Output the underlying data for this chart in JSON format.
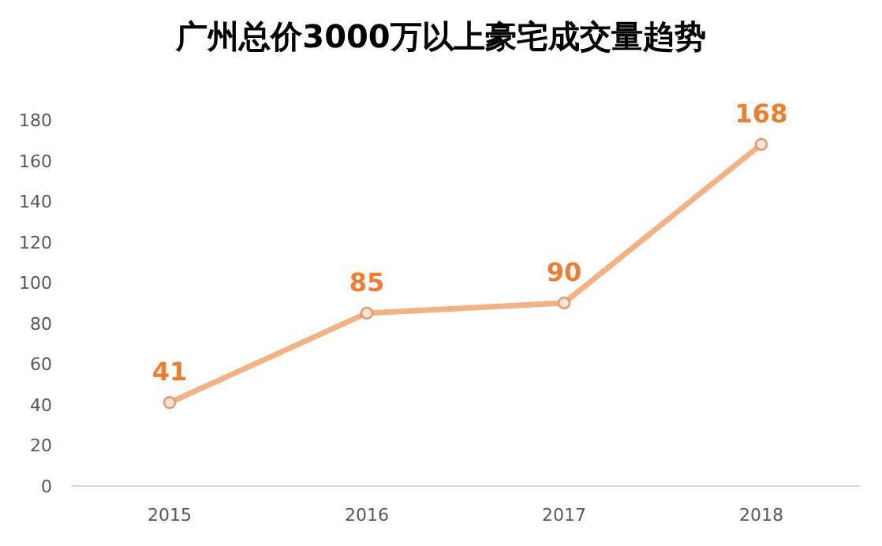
{
  "chart_data": {
    "type": "line",
    "title": "广州总价3000万以上豪宅成交量趋势",
    "categories": [
      "2015",
      "2016",
      "2017",
      "2018"
    ],
    "series": [
      {
        "color": "#f4b183",
        "values": [
          41,
          85,
          90,
          168
        ]
      }
    ],
    "data_labels": true,
    "ylim": [
      0,
      180
    ],
    "yticks": [
      0,
      20,
      40,
      60,
      80,
      100,
      120,
      140,
      160,
      180
    ],
    "grid": false,
    "marker": "circle",
    "line_style": "solid"
  }
}
